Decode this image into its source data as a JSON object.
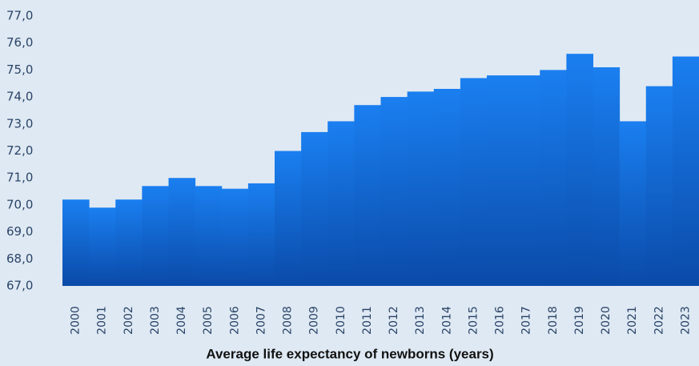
{
  "chart_data": {
    "type": "bar",
    "title": "Average life expectancy of newborns (years)",
    "categories": [
      "2000",
      "2001",
      "2002",
      "2003",
      "2004",
      "2005",
      "2006",
      "2007",
      "2008",
      "2009",
      "2010",
      "2011",
      "2012",
      "2013",
      "2014",
      "2015",
      "2016",
      "2017",
      "2018",
      "2019",
      "2020",
      "2021",
      "2022",
      "2023"
    ],
    "values": [
      70.2,
      69.9,
      70.2,
      70.7,
      71.0,
      70.7,
      70.6,
      70.8,
      72.0,
      72.7,
      73.1,
      73.7,
      74.0,
      74.2,
      74.3,
      74.7,
      74.8,
      74.8,
      75.0,
      75.6,
      75.1,
      73.1,
      74.4,
      75.5
    ],
    "color": "#1a7ff0",
    "ylim": [
      67,
      77
    ],
    "yticks": [
      {
        "value": 67,
        "label": "67,0"
      },
      {
        "value": 68,
        "label": "68,0"
      },
      {
        "value": 69,
        "label": "69,0"
      },
      {
        "value": 70,
        "label": "70,0"
      },
      {
        "value": 71,
        "label": "71,0"
      },
      {
        "value": 72,
        "label": "72,0"
      },
      {
        "value": 73,
        "label": "73,0"
      },
      {
        "value": 74,
        "label": "74,0"
      },
      {
        "value": 75,
        "label": "75,0"
      },
      {
        "value": 76,
        "label": "76,0"
      },
      {
        "value": 77,
        "label": "77,0"
      }
    ],
    "grid": false
  }
}
